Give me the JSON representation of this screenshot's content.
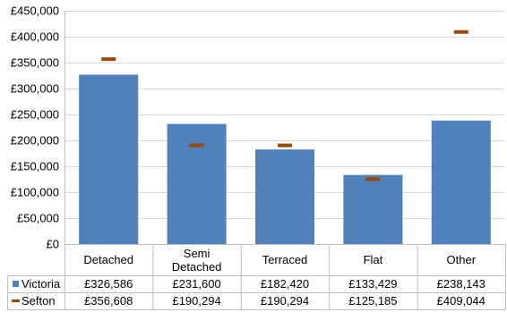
{
  "chart_data": {
    "type": "bar",
    "title": "",
    "xlabel": "",
    "ylabel": "",
    "categories": [
      "Detached",
      "Semi\nDetached",
      "Terraced",
      "Flat",
      "Other"
    ],
    "series": [
      {
        "name": "Victoria",
        "mark": "bar",
        "color": "#4F81BD",
        "values": [
          326586,
          231600,
          182420,
          133429,
          238143
        ],
        "labels": [
          "£326,586",
          "£231,600",
          "£182,420",
          "£133,429",
          "£238,143"
        ]
      },
      {
        "name": "Sefton",
        "mark": "dash",
        "color": "#984807",
        "values": [
          356608,
          190294,
          190294,
          125185,
          409044
        ],
        "labels": [
          "£356,608",
          "£190,294",
          "£190,294",
          "£125,185",
          "£409,044"
        ]
      }
    ],
    "ylim": [
      0,
      450000
    ],
    "yticks": [
      0,
      50000,
      100000,
      150000,
      200000,
      250000,
      300000,
      350000,
      400000,
      450000
    ],
    "ytick_labels": [
      "£0",
      "£50,000",
      "£100,000",
      "£150,000",
      "£200,000",
      "£250,000",
      "£300,000",
      "£350,000",
      "£400,000",
      "£450,000"
    ],
    "grid": true,
    "legend": "data-table"
  }
}
